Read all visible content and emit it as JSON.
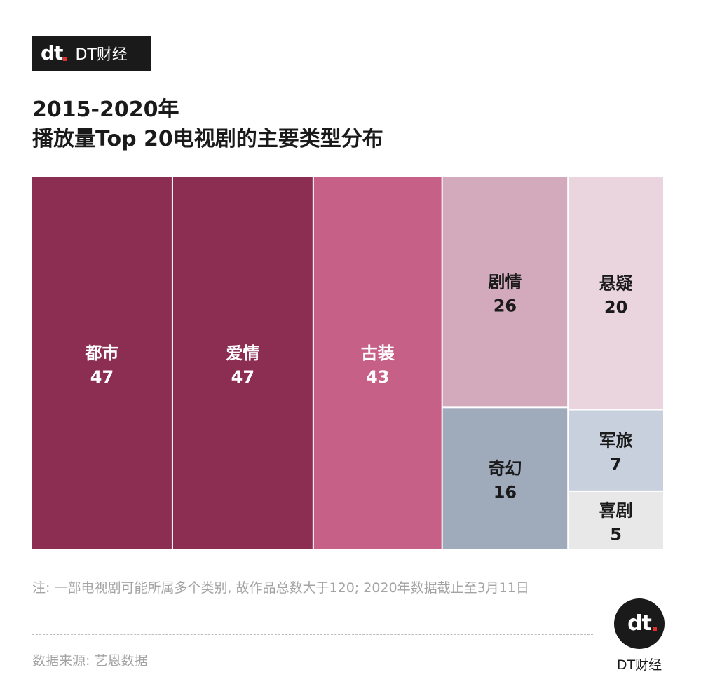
{
  "brand": {
    "logo_mark": "dt",
    "logo_text": "DT财经",
    "badge_text": "DT财经"
  },
  "title_line1": "2015-2020年",
  "title_line2": "播放量Top 20电视剧的主要类型分布",
  "note": "注: 一部电视剧可能所属多个类别, 故作品总数大于120; 2020年数据截止至3月11日",
  "source": "数据来源: 艺恩数据",
  "colors": {
    "都市": "#8b2e52",
    "爱情": "#8b2e52",
    "古装": "#c66086",
    "剧情": "#d3aabb",
    "悬疑": "#ead5de",
    "奇幻": "#9faabb",
    "军旅": "#c9d0dd",
    "喜剧": "#e8e8e8"
  },
  "chart_data": {
    "type": "treemap",
    "title": "2015-2020年 播放量Top 20电视剧的主要类型分布",
    "categories": [
      "都市",
      "爱情",
      "古装",
      "剧情",
      "悬疑",
      "奇幻",
      "军旅",
      "喜剧"
    ],
    "values": [
      47,
      47,
      43,
      26,
      20,
      16,
      7,
      5
    ]
  }
}
